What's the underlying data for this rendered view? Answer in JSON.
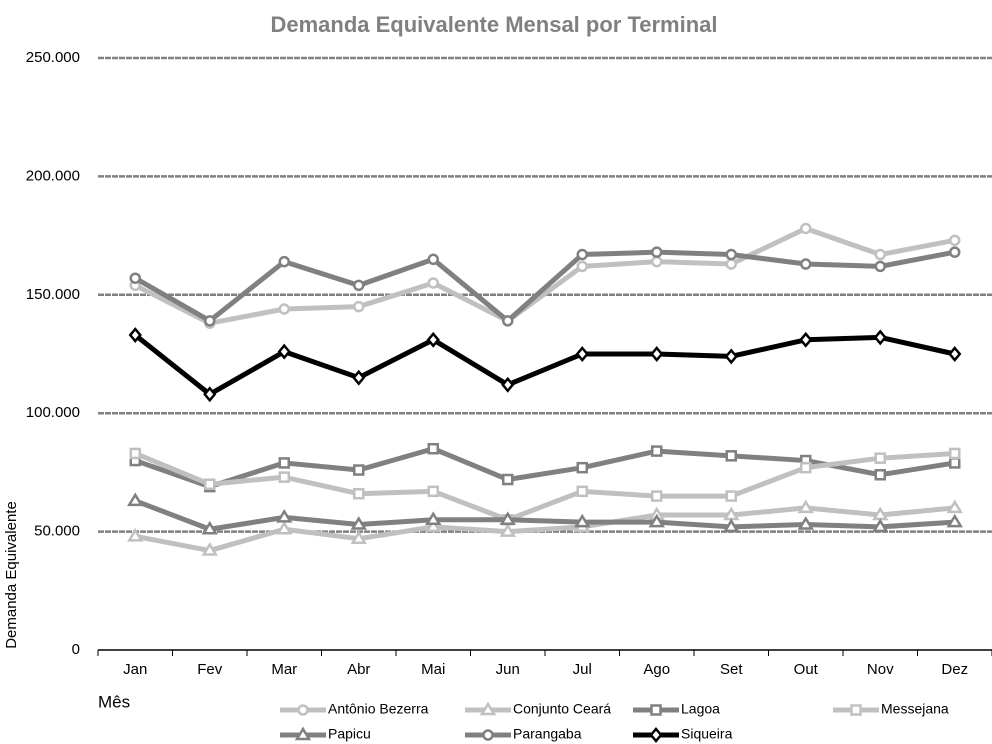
{
  "chart_data": {
    "type": "line",
    "title": "Demanda Equivalente Mensal por Terminal",
    "x_label": "Mês",
    "y_label": "Demanda Equivalente",
    "categories": [
      "Jan",
      "Fev",
      "Mar",
      "Abr",
      "Mai",
      "Jun",
      "Jul",
      "Ago",
      "Set",
      "Out",
      "Nov",
      "Dez"
    ],
    "series": [
      {
        "name": "Antônio Bezerra",
        "color": "#c0c0c0",
        "marker": "circle",
        "values": [
          154000,
          138000,
          144000,
          145000,
          155000,
          139000,
          162000,
          164000,
          163000,
          178000,
          167000,
          173000
        ]
      },
      {
        "name": "Conjunto Ceará",
        "color": "#c0c0c0",
        "marker": "triangle",
        "values": [
          48000,
          42000,
          51000,
          47000,
          52000,
          50000,
          52000,
          57000,
          57000,
          60000,
          57000,
          60000
        ]
      },
      {
        "name": "Lagoa",
        "color": "#808080",
        "marker": "square",
        "values": [
          80000,
          69000,
          79000,
          76000,
          85000,
          72000,
          77000,
          84000,
          82000,
          80000,
          74000,
          79000
        ]
      },
      {
        "name": "Messejana",
        "color": "#c0c0c0",
        "marker": "square",
        "values": [
          83000,
          70000,
          73000,
          66000,
          67000,
          55000,
          67000,
          65000,
          65000,
          77000,
          81000,
          83000
        ]
      },
      {
        "name": "Papicu",
        "color": "#808080",
        "marker": "triangle",
        "values": [
          63000,
          51000,
          56000,
          53000,
          55000,
          55000,
          54000,
          54000,
          52000,
          53000,
          52000,
          54000
        ]
      },
      {
        "name": "Parangaba",
        "color": "#808080",
        "marker": "circle",
        "values": [
          157000,
          139000,
          164000,
          154000,
          165000,
          139000,
          167000,
          168000,
          167000,
          163000,
          162000,
          168000
        ]
      },
      {
        "name": "Siqueira",
        "color": "#000000",
        "marker": "diamond",
        "values": [
          133000,
          108000,
          126000,
          115000,
          131000,
          112000,
          125000,
          125000,
          124000,
          131000,
          132000,
          125000
        ]
      }
    ],
    "ylim": [
      0,
      250000
    ],
    "yticks": [
      0,
      {
        "value": 50000,
        "label": "50.000"
      },
      {
        "value": 100000,
        "label": "100.000"
      },
      {
        "value": 150000,
        "label": "150.000"
      },
      {
        "value": 200000,
        "label": "200.000"
      },
      {
        "value": 250000,
        "label": "250.000"
      }
    ],
    "grid": true
  }
}
